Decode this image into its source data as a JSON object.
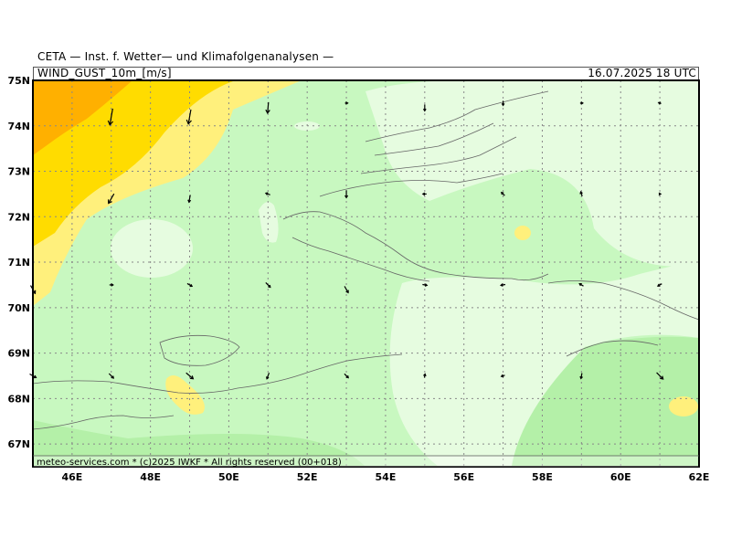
{
  "header": {
    "title": "CETA — Inst. f. Wetter— und Klimafolgenanalysen —",
    "parameter": "WIND_GUST_10m_[m/s]",
    "valid_time": "16.07.2025 18 UTC"
  },
  "axes": {
    "lat_labels": [
      "75N",
      "74N",
      "73N",
      "72N",
      "71N",
      "70N",
      "69N",
      "68N",
      "67N"
    ],
    "lon_labels": [
      "46E",
      "48E",
      "50E",
      "52E",
      "54E",
      "56E",
      "58E",
      "60E",
      "62E"
    ]
  },
  "credit": "meteo-services.com * (c)2025 IWKF * All rights reserved (00+018)",
  "colors": {
    "ocean_light": "#e6fce0",
    "green_light": "#c8f8c0",
    "green_mid": "#b4f0a8",
    "yellow_pale": "#fff07c",
    "yellow": "#ffdc00",
    "orange": "#ffb000",
    "grid": "#888888",
    "coast": "#666666"
  }
}
